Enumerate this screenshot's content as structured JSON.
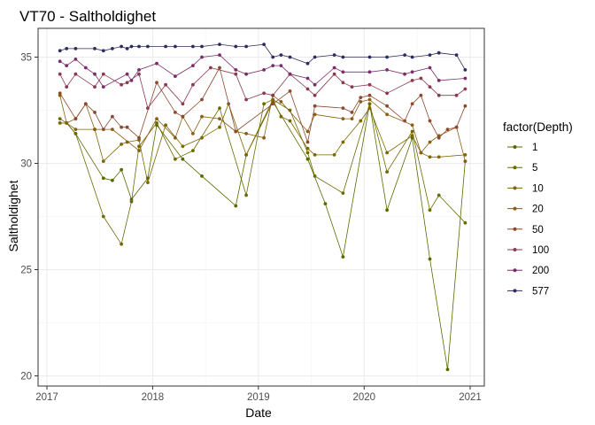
{
  "chart_data": {
    "type": "line",
    "title": "VT70  -  Saltholdighet",
    "xlabel": "Date",
    "ylabel": "Saltholdighet",
    "x_ticks": [
      "2017",
      "2018",
      "2019",
      "2020",
      "2021"
    ],
    "y_ticks": [
      20,
      25,
      30,
      35
    ],
    "xlim": [
      "2017-01-01",
      "2021-01-01"
    ],
    "ylim": [
      20,
      36
    ],
    "grid": true,
    "legend": {
      "title": "factor(Depth)",
      "position": "right"
    },
    "dates": [
      "2017-02-15",
      "2017-03-10",
      "2017-04-10",
      "2017-05-15",
      "2017-06-15",
      "2017-07-15",
      "2017-08-15",
      "2017-09-15",
      "2017-10-05",
      "2017-10-20",
      "2017-11-15",
      "2017-12-15",
      "2018-01-15",
      "2018-02-15",
      "2018-03-20",
      "2018-04-15",
      "2018-05-20",
      "2018-06-20",
      "2018-07-20",
      "2018-08-20",
      "2018-09-20",
      "2018-10-15",
      "2018-11-20",
      "2018-12-15",
      "2019-01-20",
      "2019-02-20",
      "2019-03-20",
      "2019-04-20",
      "2019-05-20",
      "2019-06-20",
      "2019-07-15",
      "2019-08-20",
      "2019-09-20",
      "2019-10-20",
      "2019-11-20",
      "2019-12-20",
      "2020-01-20",
      "2020-02-20",
      "2020-03-20",
      "2020-04-20",
      "2020-05-20",
      "2020-06-15",
      "2020-07-15",
      "2020-08-15",
      "2020-09-15",
      "2020-10-15",
      "2020-11-15",
      "2020-12-15"
    ],
    "series": [
      {
        "name": "1",
        "color": "#556b00",
        "values": [
          31.9,
          31.9,
          31.4,
          null,
          null,
          29.3,
          29.2,
          29.7,
          null,
          28.3,
          null,
          29.3,
          31.8,
          null,
          null,
          30.2,
          null,
          29.4,
          null,
          null,
          null,
          28.0,
          30.4,
          null,
          null,
          32.9,
          null,
          null,
          null,
          30.2,
          null,
          28.1,
          null,
          25.6,
          null,
          null,
          32.8,
          null,
          27.8,
          null,
          null,
          31.2,
          null,
          25.5,
          null,
          20.3,
          null,
          30.1
        ]
      },
      {
        "name": "5",
        "color": "#6b6b00",
        "values": [
          32.1,
          31.9,
          31.4,
          null,
          null,
          27.5,
          null,
          26.2,
          null,
          28.2,
          30.8,
          null,
          31.9,
          null,
          30.2,
          null,
          30.6,
          null,
          null,
          32.6,
          null,
          null,
          28.5,
          null,
          32.8,
          33.0,
          null,
          32.5,
          null,
          30.5,
          29.4,
          null,
          null,
          28.6,
          null,
          null,
          32.8,
          null,
          29.6,
          null,
          null,
          31.5,
          null,
          27.8,
          28.5,
          null,
          null,
          27.2
        ]
      },
      {
        "name": "10",
        "color": "#7d6700",
        "values": [
          31.9,
          31.9,
          31.6,
          null,
          31.6,
          30.1,
          null,
          30.9,
          31.0,
          null,
          31.1,
          29.1,
          null,
          31.8,
          null,
          30.8,
          null,
          31.2,
          null,
          31.7,
          32.8,
          null,
          30.4,
          null,
          null,
          33.0,
          32.2,
          32.0,
          null,
          30.7,
          30.4,
          null,
          30.4,
          31.0,
          null,
          32.0,
          32.6,
          null,
          30.5,
          null,
          null,
          31.3,
          30.5,
          30.3,
          30.3,
          null,
          null,
          30.4
        ]
      },
      {
        "name": "20",
        "color": "#8a5e14",
        "values": [
          33.2,
          31.9,
          32.1,
          32.8,
          31.6,
          null,
          31.6,
          null,
          null,
          null,
          30.6,
          null,
          32.1,
          null,
          31.2,
          32.2,
          31.4,
          32.2,
          null,
          32.1,
          null,
          31.5,
          31.4,
          null,
          31.2,
          33.2,
          32.9,
          null,
          null,
          31.5,
          32.3,
          null,
          null,
          32.1,
          32.1,
          32.9,
          33.0,
          null,
          32.3,
          null,
          null,
          31.8,
          30.5,
          31.0,
          31.3,
          null,
          31.7,
          30.1
        ]
      },
      {
        "name": "50",
        "color": "#8b4a2e",
        "values": [
          33.3,
          null,
          32.1,
          32.8,
          32.4,
          31.6,
          32.2,
          31.7,
          31.7,
          null,
          31.2,
          null,
          33.8,
          null,
          32.4,
          32.2,
          null,
          33.0,
          null,
          34.5,
          null,
          31.5,
          null,
          null,
          null,
          32.8,
          null,
          33.4,
          null,
          31.0,
          32.7,
          null,
          null,
          32.6,
          32.4,
          33.1,
          33.2,
          null,
          32.7,
          null,
          32.0,
          32.8,
          33.2,
          32.0,
          31.2,
          31.6,
          31.7,
          32.7
        ]
      },
      {
        "name": "100",
        "color": "#8b3a4e",
        "values": [
          34.2,
          33.6,
          34.2,
          null,
          33.6,
          34.2,
          null,
          33.7,
          33.8,
          null,
          34.2,
          32.6,
          null,
          33.7,
          null,
          32.8,
          33.7,
          null,
          34.5,
          null,
          null,
          34.2,
          33.0,
          null,
          33.3,
          33.2,
          null,
          34.2,
          null,
          33.5,
          33.2,
          null,
          34.2,
          33.8,
          33.6,
          null,
          33.7,
          null,
          33.3,
          null,
          null,
          33.9,
          34.0,
          33.6,
          33.2,
          null,
          33.2,
          33.5
        ]
      },
      {
        "name": "200",
        "color": "#7a2e68",
        "values": [
          34.8,
          34.6,
          34.9,
          34.5,
          34.2,
          33.6,
          null,
          null,
          34.2,
          33.9,
          34.4,
          null,
          34.7,
          null,
          34.1,
          null,
          34.6,
          35.0,
          null,
          35.1,
          null,
          34.4,
          34.2,
          null,
          34.4,
          34.6,
          34.6,
          34.2,
          null,
          34.0,
          33.7,
          null,
          34.5,
          34.3,
          null,
          null,
          34.3,
          null,
          34.4,
          null,
          34.2,
          34.3,
          null,
          34.5,
          33.9,
          null,
          null,
          34.0
        ]
      },
      {
        "name": "577",
        "color": "#2e2c5e",
        "values": [
          35.3,
          35.4,
          35.4,
          null,
          35.4,
          35.3,
          35.4,
          35.5,
          35.4,
          35.5,
          35.5,
          35.5,
          null,
          35.5,
          35.5,
          null,
          35.5,
          35.5,
          null,
          35.6,
          null,
          35.5,
          35.5,
          null,
          35.6,
          35.0,
          35.1,
          35.0,
          null,
          34.7,
          35.0,
          null,
          35.1,
          35.0,
          null,
          null,
          35.0,
          null,
          35.0,
          null,
          35.1,
          35.0,
          null,
          35.1,
          35.2,
          null,
          35.1,
          34.4
        ]
      }
    ]
  }
}
